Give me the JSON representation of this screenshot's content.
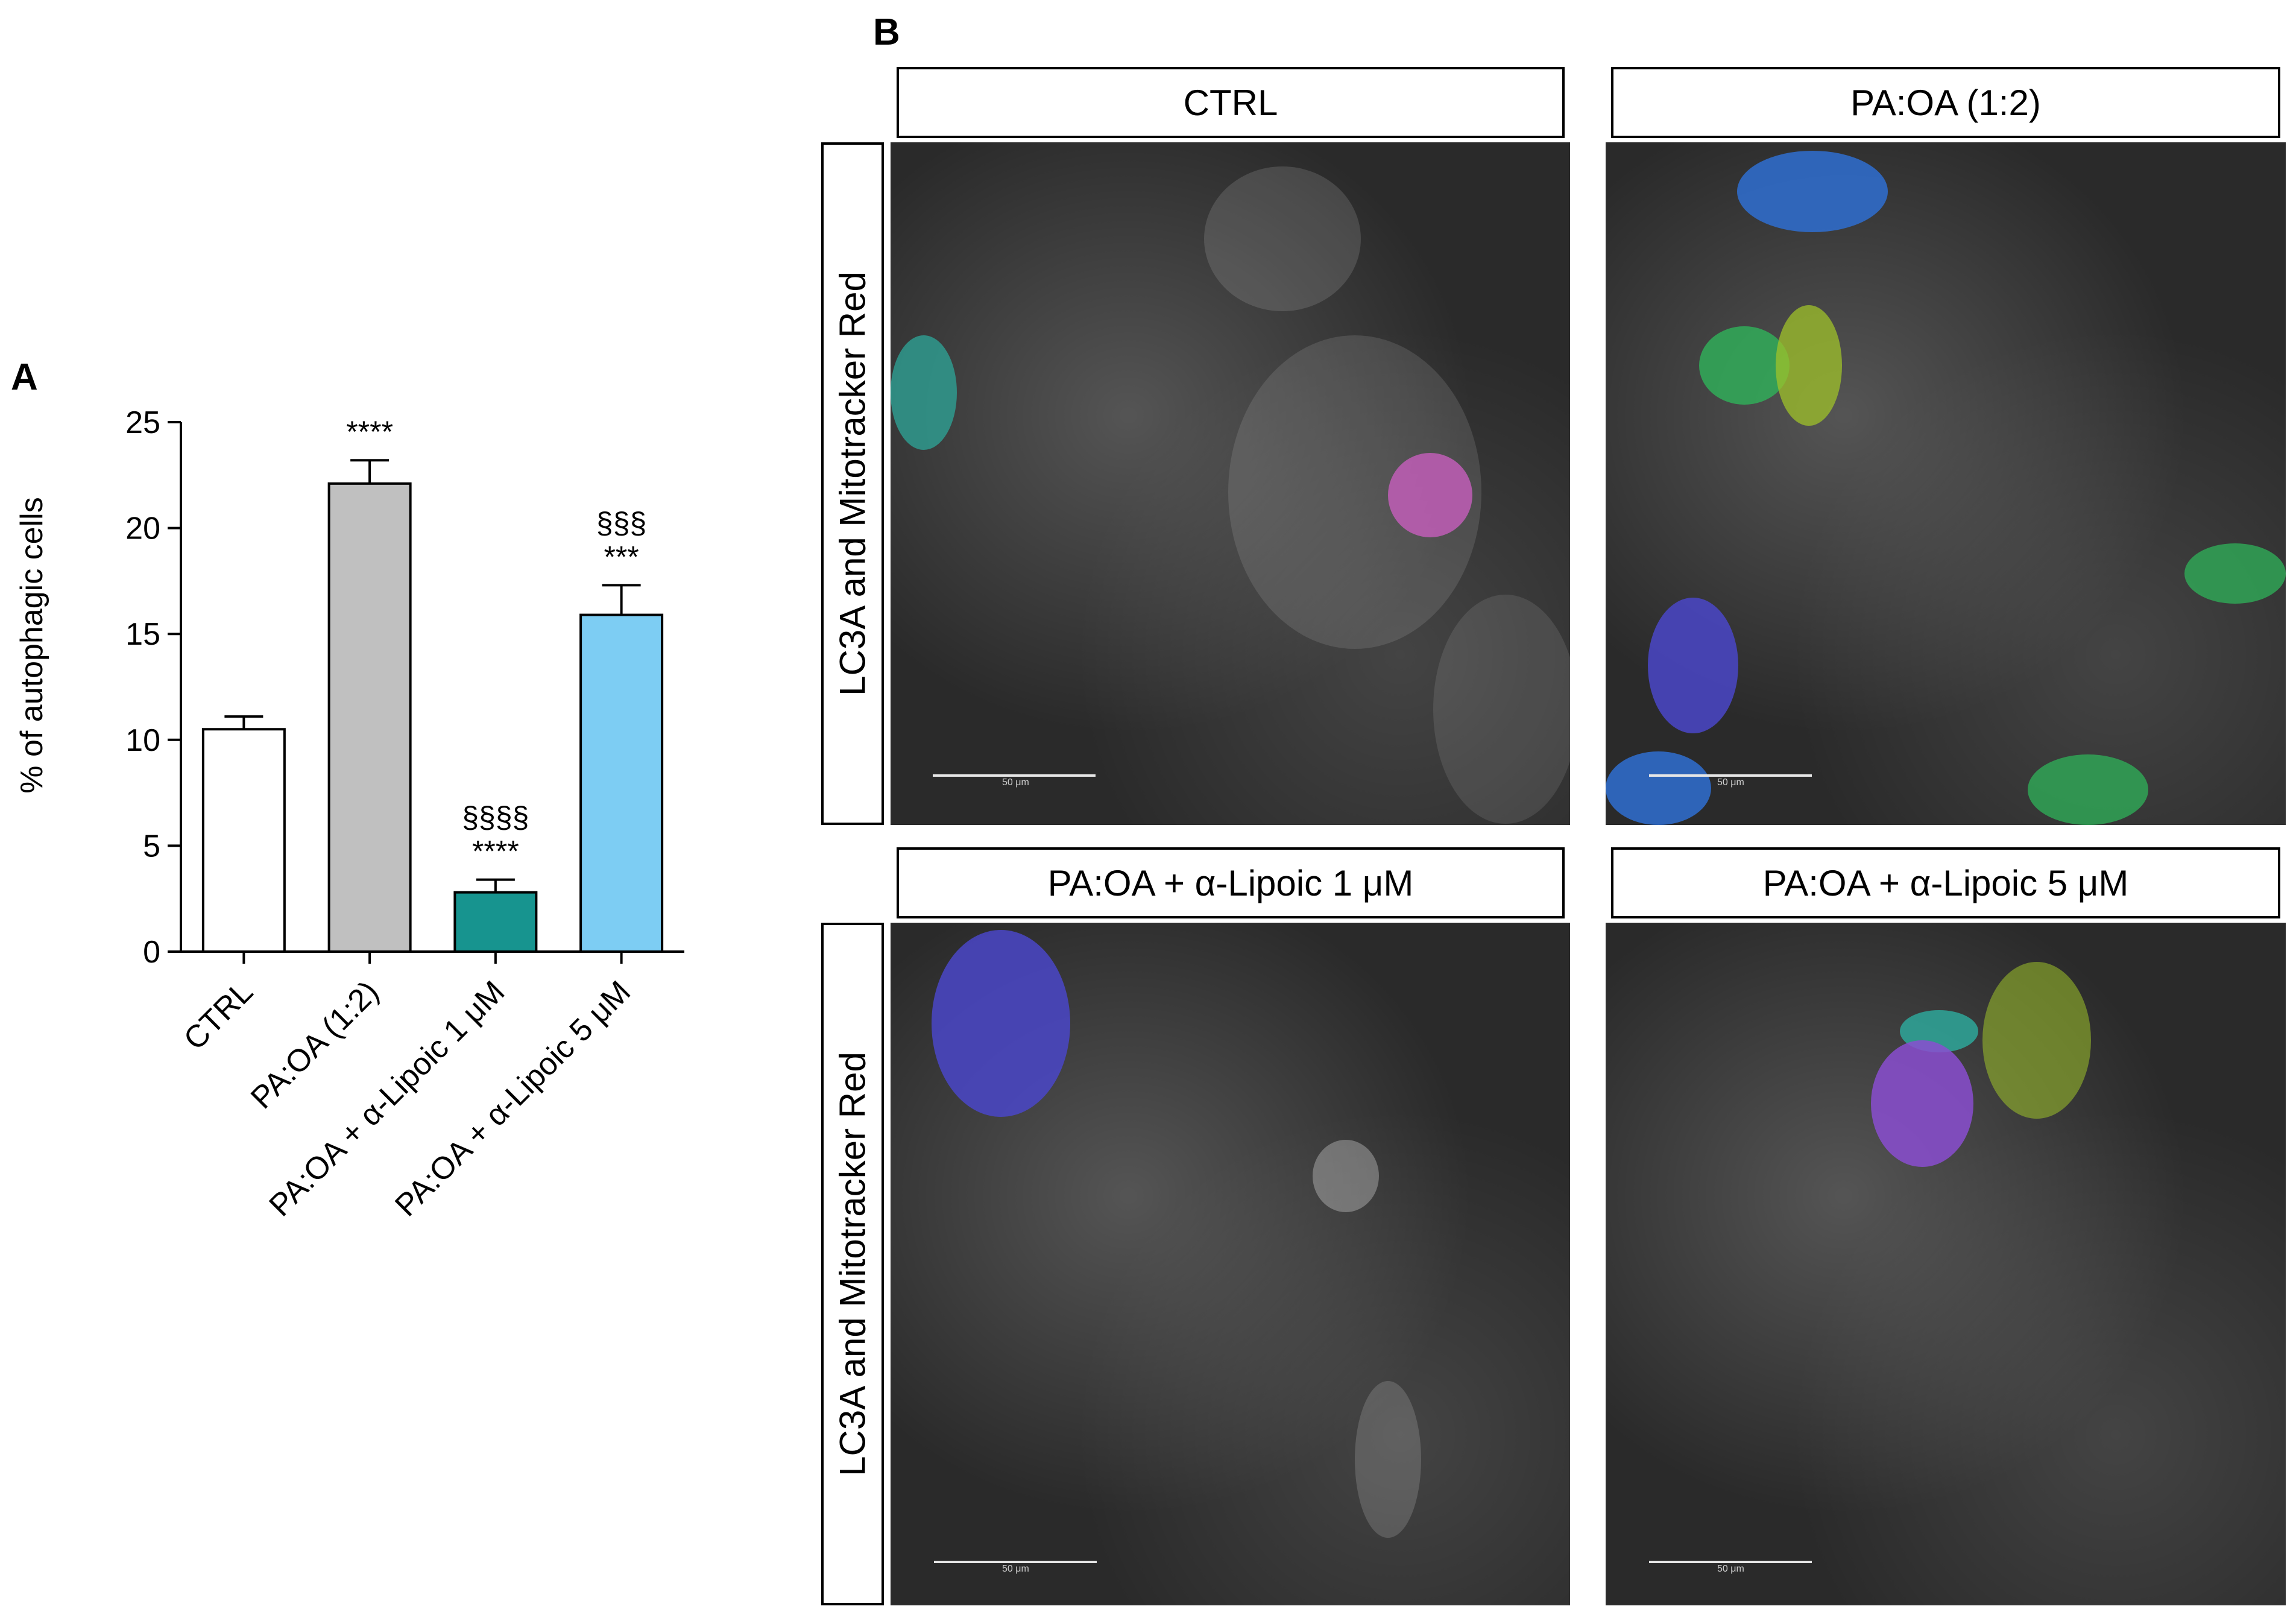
{
  "panels": {
    "a_letter": "A",
    "b_letter": "B"
  },
  "chart_data": {
    "type": "bar",
    "categories": [
      "CTRL",
      "PA:OA (1:2)",
      "PA:OA + α-Lipoic 1 μM",
      "PA:OA + α-Lipoic 5 μM"
    ],
    "values": [
      10.5,
      22.1,
      2.8,
      15.9
    ],
    "errors": [
      0.6,
      1.1,
      0.6,
      1.4
    ],
    "bar_colors": [
      "#ffffff",
      "#c0c0c0",
      "#17948f",
      "#7dcdf3"
    ],
    "annotations": [
      {
        "category": "CTRL",
        "lines": []
      },
      {
        "category": "PA:OA (1:2)",
        "lines": [
          "****"
        ]
      },
      {
        "category": "PA:OA + α-Lipoic 1 μM",
        "lines": [
          "§§§§",
          "****"
        ]
      },
      {
        "category": "PA:OA + α-Lipoic 5 μM",
        "lines": [
          "§§§",
          "***"
        ]
      }
    ],
    "ylabel": "% of autophagic cells",
    "xlabel": "",
    "ylim": [
      0,
      25
    ],
    "yticks": [
      0,
      5,
      10,
      15,
      20,
      25
    ],
    "grid": false
  },
  "micrographs": {
    "row_label": "LC3A and Mitotracker Red",
    "conditions": [
      "CTRL",
      "PA:OA (1:2)",
      "PA:OA + α-Lipoic 1 μM",
      "PA:OA + α-Lipoic 5 μM"
    ],
    "scale_bar_text": "50 μm",
    "highlight_colors": [
      "#2ea79a",
      "#c04ab4",
      "#2f6fd1",
      "#2fb35a",
      "#9fc22a",
      "#4a46c8",
      "#8a4ed0"
    ]
  }
}
